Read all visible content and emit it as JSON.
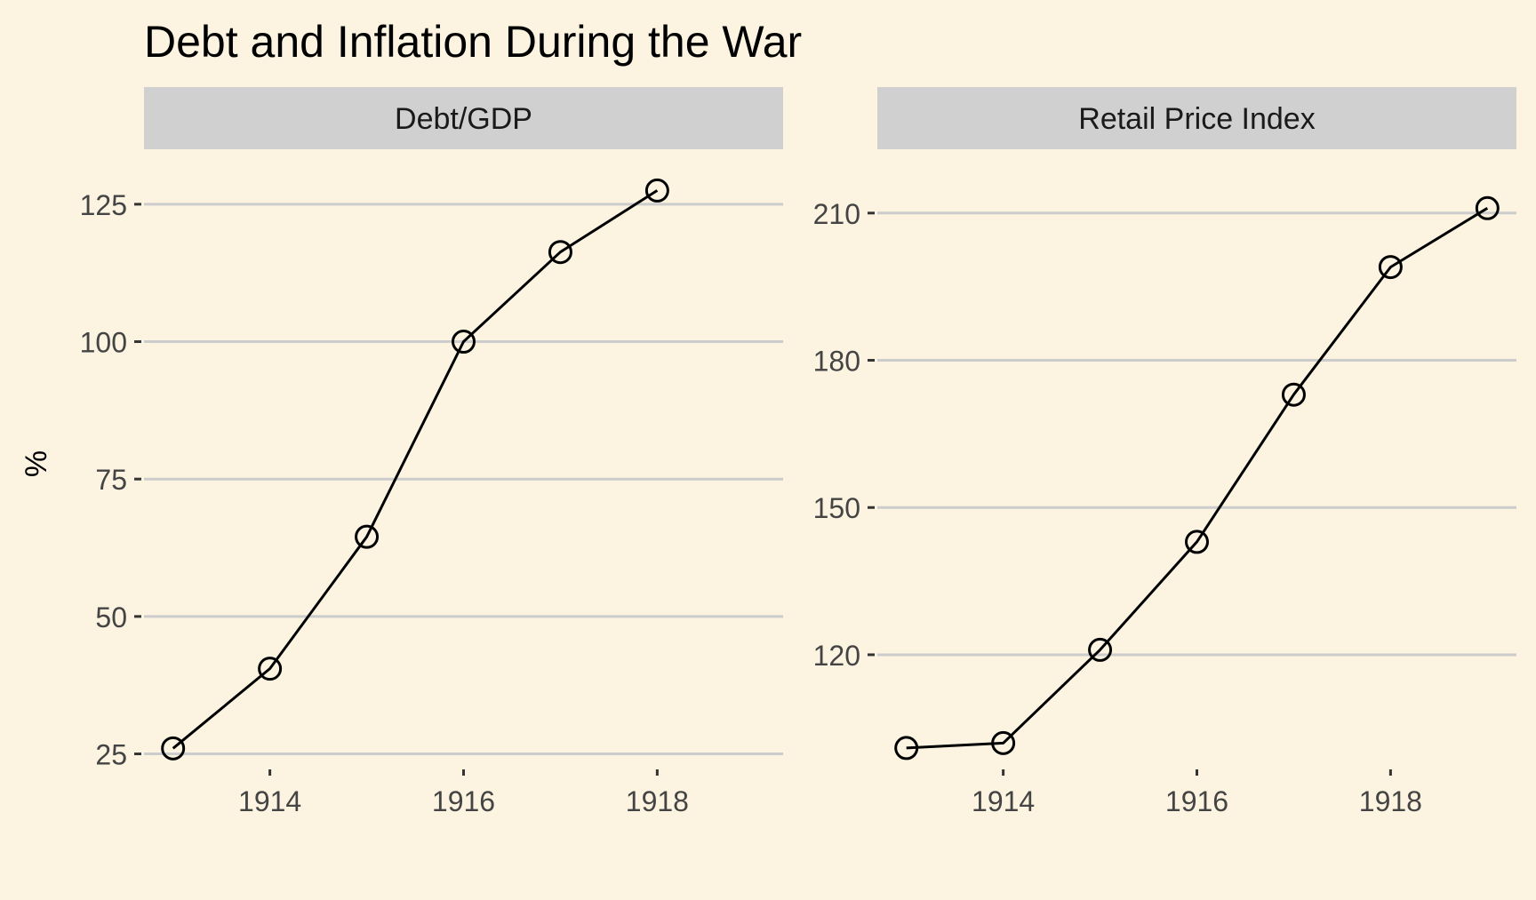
{
  "colors": {
    "background": "#fcf4e0",
    "strip": "#d0d0d0",
    "gridline": "#cccccc",
    "line": "#000000",
    "text": "#444444",
    "title": "#000000"
  },
  "chart_data": {
    "type": "line",
    "title": "Debt and Inflation During the War",
    "ylabel": "%",
    "xlabel": "",
    "grid": "horizontal major",
    "panels": [
      {
        "strip_label": "Debt/GDP",
        "x": [
          1913,
          1914,
          1915,
          1916,
          1917,
          1918
        ],
        "y": [
          26,
          40.5,
          64.5,
          100,
          116.3,
          127.5
        ],
        "xlim": [
          1912.7,
          1919.3
        ],
        "ylim": [
          22.5,
          135
        ],
        "x_ticks": [
          1914,
          1916,
          1918
        ],
        "y_ticks": [
          25,
          50,
          75,
          100,
          125
        ]
      },
      {
        "strip_label": "Retail Price Index",
        "x": [
          1913,
          1914,
          1915,
          1916,
          1917,
          1918,
          1919
        ],
        "y": [
          101,
          102,
          121,
          143,
          173,
          199,
          211
        ],
        "xlim": [
          1912.7,
          1919.3
        ],
        "ylim": [
          97,
          223
        ],
        "x_ticks": [
          1914,
          1916,
          1918
        ],
        "y_ticks": [
          120,
          150,
          180,
          210
        ]
      }
    ]
  }
}
